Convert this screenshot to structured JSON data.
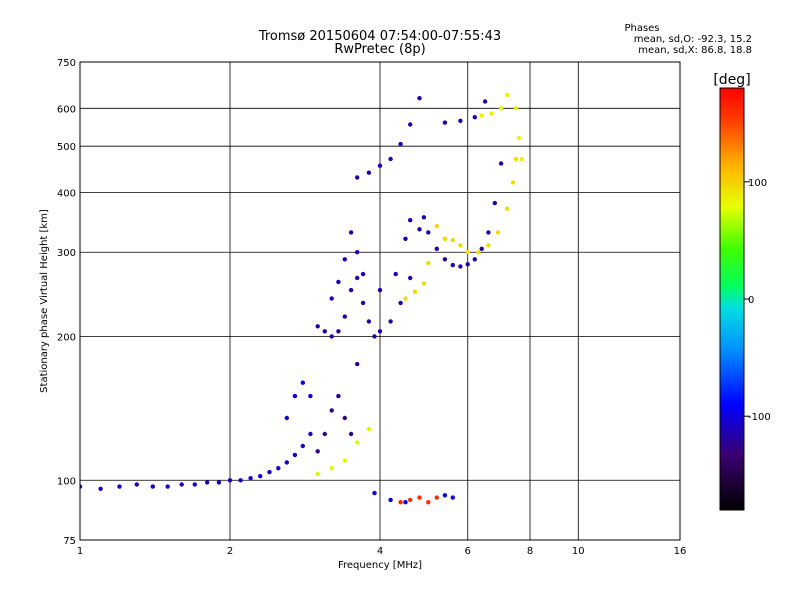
{
  "chart_data": {
    "type": "scatter",
    "title": "Tromsø 20150604 07:54:00-07:55:43",
    "subtitle": "RwPretec (8p)",
    "xlabel": "Frequency [MHz]",
    "ylabel": "Stationary phase Virtual Height [km]",
    "x_scale": "log",
    "y_scale": "log",
    "xlim": [
      1,
      16
    ],
    "ylim": [
      75,
      750
    ],
    "x_ticks": [
      1,
      2,
      4,
      6,
      8,
      10,
      16
    ],
    "y_ticks": [
      75,
      100,
      200,
      300,
      400,
      500,
      600,
      750
    ],
    "grid": true,
    "phase_stats": {
      "heading": "Phases",
      "line_o": "mean, sd,O: -92.3, 15.2",
      "line_x": "mean, sd,X:  86.8, 18.8"
    },
    "colorbar": {
      "label": "[deg]",
      "range": [
        -180,
        180
      ],
      "ticks": [
        100,
        0,
        -100
      ]
    },
    "series": [
      {
        "traces": [
          {
            "phase": -105,
            "points": [
              [
                1.0,
                97
              ],
              [
                1.1,
                96
              ],
              [
                1.2,
                97
              ],
              [
                1.3,
                98
              ],
              [
                1.4,
                97
              ],
              [
                1.5,
                97
              ],
              [
                1.6,
                98
              ],
              [
                1.7,
                98
              ],
              [
                1.8,
                99
              ],
              [
                1.9,
                99
              ],
              [
                2.0,
                100
              ],
              [
                2.1,
                100
              ],
              [
                2.2,
                101
              ],
              [
                2.3,
                102
              ],
              [
                2.4,
                104
              ],
              [
                2.5,
                106
              ],
              [
                2.6,
                109
              ],
              [
                2.7,
                113
              ],
              [
                2.8,
                118
              ],
              [
                2.9,
                125
              ]
            ]
          },
          {
            "phase": -115,
            "points": [
              [
                3.0,
                210
              ],
              [
                3.1,
                205
              ],
              [
                3.2,
                200
              ],
              [
                3.3,
                205
              ],
              [
                3.4,
                220
              ],
              [
                3.5,
                250
              ],
              [
                3.6,
                265
              ],
              [
                3.7,
                235
              ],
              [
                3.8,
                215
              ],
              [
                3.9,
                200
              ],
              [
                4.0,
                205
              ],
              [
                4.2,
                215
              ],
              [
                4.4,
                235
              ],
              [
                4.6,
                265
              ],
              [
                4.8,
                335
              ],
              [
                4.9,
                355
              ],
              [
                5.0,
                330
              ],
              [
                5.2,
                305
              ],
              [
                5.4,
                290
              ],
              [
                5.6,
                282
              ],
              [
                5.8,
                280
              ],
              [
                6.0,
                283
              ],
              [
                6.2,
                290
              ],
              [
                6.4,
                305
              ],
              [
                6.6,
                330
              ],
              [
                6.8,
                380
              ],
              [
                7.0,
                460
              ]
            ]
          },
          {
            "phase": -110,
            "points": [
              [
                3.6,
                430
              ],
              [
                3.8,
                440
              ],
              [
                4.0,
                455
              ],
              [
                4.2,
                470
              ],
              [
                4.4,
                505
              ],
              [
                4.6,
                555
              ],
              [
                4.8,
                630
              ],
              [
                5.4,
                560
              ],
              [
                5.8,
                565
              ],
              [
                6.2,
                575
              ],
              [
                6.5,
                620
              ]
            ]
          },
          {
            "phase": -108,
            "points": [
              [
                3.2,
                240
              ],
              [
                3.3,
                260
              ],
              [
                3.4,
                290
              ],
              [
                3.5,
                330
              ],
              [
                3.6,
                300
              ],
              [
                3.7,
                270
              ],
              [
                4.0,
                250
              ],
              [
                4.3,
                270
              ],
              [
                4.5,
                320
              ],
              [
                4.6,
                350
              ]
            ]
          },
          {
            "phase": -125,
            "points": [
              [
                3.0,
                115
              ],
              [
                3.1,
                125
              ],
              [
                3.2,
                140
              ],
              [
                3.3,
                150
              ],
              [
                3.4,
                135
              ],
              [
                3.5,
                125
              ],
              [
                3.6,
                175
              ]
            ]
          },
          {
            "phase": -95,
            "points": [
              [
                2.6,
                135
              ],
              [
                2.7,
                150
              ],
              [
                2.8,
                160
              ],
              [
                2.9,
                150
              ]
            ]
          },
          {
            "phase": 95,
            "points": [
              [
                4.5,
                240
              ],
              [
                4.7,
                248
              ],
              [
                4.9,
                258
              ],
              [
                5.0,
                285
              ],
              [
                5.2,
                340
              ],
              [
                5.4,
                320
              ],
              [
                5.6,
                318
              ],
              [
                5.8,
                310
              ],
              [
                6.0,
                300
              ],
              [
                6.3,
                300
              ],
              [
                6.6,
                310
              ],
              [
                6.9,
                330
              ],
              [
                7.2,
                370
              ],
              [
                7.4,
                420
              ],
              [
                7.5,
                470
              ]
            ]
          },
          {
            "phase": 85,
            "points": [
              [
                6.4,
                580
              ],
              [
                6.7,
                585
              ],
              [
                7.0,
                600
              ],
              [
                7.2,
                640
              ],
              [
                7.5,
                600
              ],
              [
                7.6,
                520
              ],
              [
                7.7,
                470
              ]
            ]
          },
          {
            "phase": 75,
            "points": [
              [
                3.0,
                103
              ],
              [
                3.2,
                106
              ],
              [
                3.4,
                110
              ],
              [
                3.6,
                120
              ],
              [
                3.8,
                128
              ]
            ]
          },
          {
            "phase": 160,
            "points": [
              [
                4.4,
                90
              ],
              [
                4.6,
                91
              ],
              [
                4.8,
                92
              ],
              [
                5.0,
                90
              ],
              [
                5.2,
                92
              ]
            ]
          },
          {
            "phase": -95,
            "points": [
              [
                3.9,
                94
              ],
              [
                4.2,
                91
              ],
              [
                4.5,
                90
              ],
              [
                5.4,
                93
              ],
              [
                5.6,
                92
              ]
            ]
          }
        ]
      }
    ]
  }
}
